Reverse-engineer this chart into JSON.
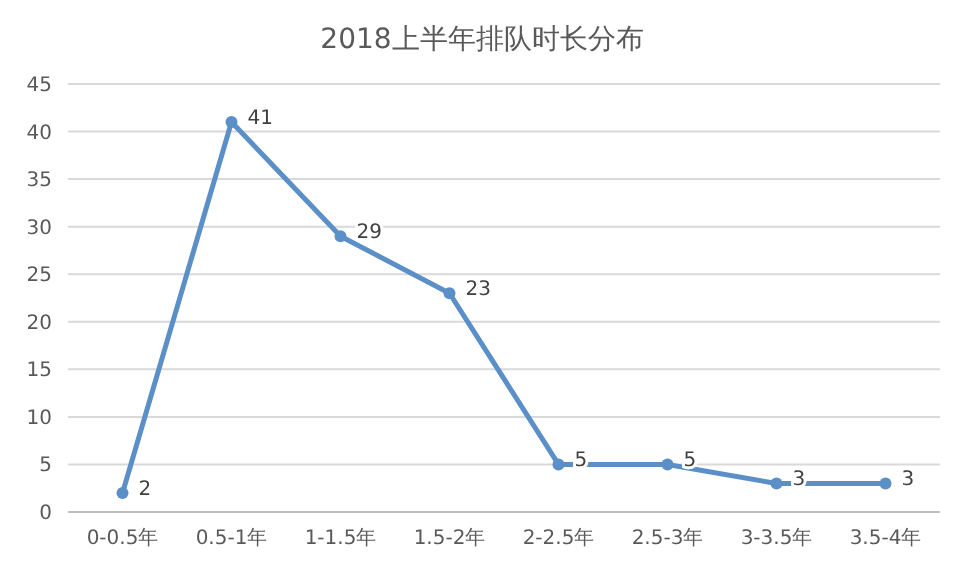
{
  "chart_data": {
    "type": "line",
    "title": "2018上半年排队时长分布",
    "categories": [
      "0-0.5年",
      "0.5-1年",
      "1-1.5年",
      "1.5-2年",
      "2-2.5年",
      "2.5-3年",
      "3-3.5年",
      "3.5-4年"
    ],
    "series": [
      {
        "color": "#5b8fc7",
        "values": [
          2,
          41,
          29,
          23,
          5,
          5,
          3,
          3
        ]
      }
    ],
    "ylim": [
      0,
      45
    ],
    "yticks": [
      0,
      5,
      10,
      15,
      20,
      25,
      30,
      35,
      40,
      45
    ],
    "grid": "y",
    "data_labels": true,
    "marker": "circle",
    "line_style": "solid"
  }
}
